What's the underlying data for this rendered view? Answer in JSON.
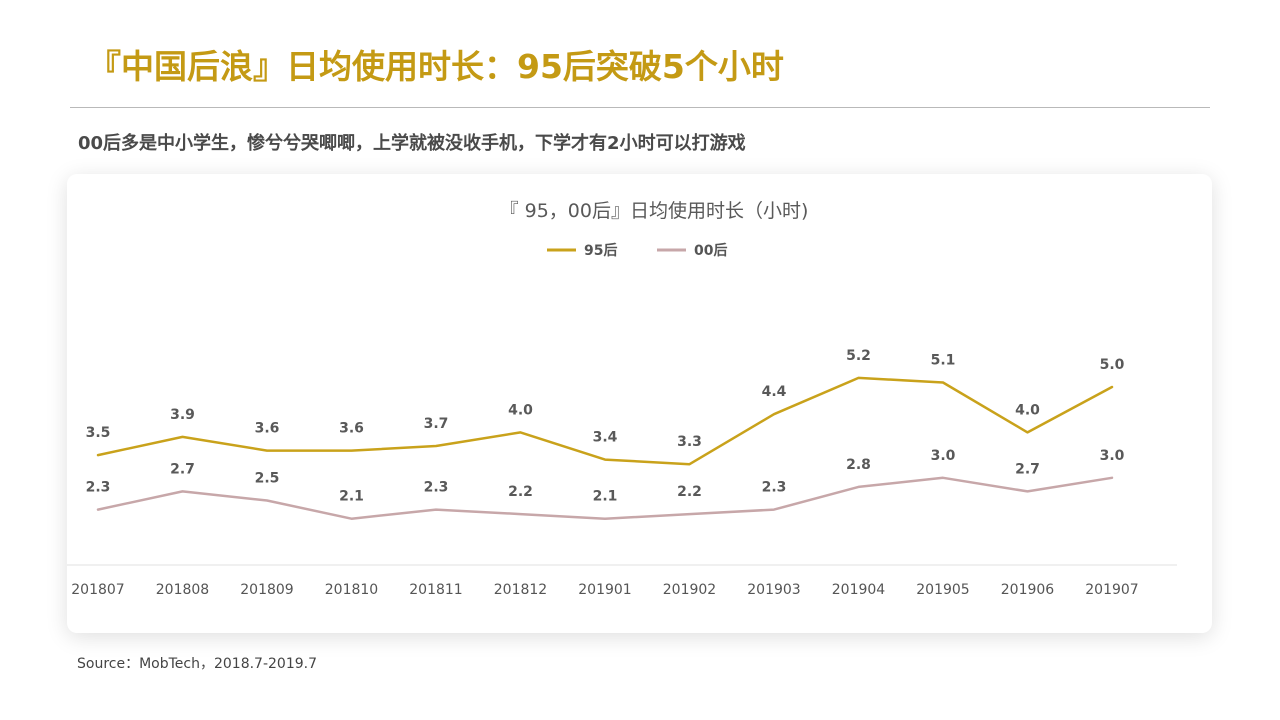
{
  "header": {
    "title": "『中国后浪』日均使用时长：95后突破5个小时",
    "subtitle": "00后多是中小学生，惨兮兮哭唧唧，上学就被没收手机，下学才有2小时可以打游戏"
  },
  "footer": {
    "source": "Source：MobTech，2018.7-2019.7"
  },
  "colors": {
    "accent": "#c49a14",
    "series_95": "#c9a21b",
    "series_00": "#c7a7a9",
    "axis_text": "#555555"
  },
  "chart_data": {
    "type": "line",
    "title": "『 95，00后』日均使用时长（小时)",
    "xlabel": "",
    "ylabel": "",
    "categories": [
      "201807",
      "201808",
      "201809",
      "201810",
      "201811",
      "201812",
      "201901",
      "201902",
      "201903",
      "201904",
      "201905",
      "201906",
      "201907"
    ],
    "ylim": [
      0,
      6
    ],
    "grid": false,
    "legend": "top-center",
    "data_labels": true,
    "series": [
      {
        "name": "95后",
        "color": "#c9a21b",
        "values": [
          3.5,
          3.9,
          3.6,
          3.6,
          3.7,
          4.0,
          3.4,
          3.3,
          4.4,
          5.2,
          5.1,
          4.0,
          5.0
        ]
      },
      {
        "name": "00后",
        "color": "#c7a7a9",
        "values": [
          2.3,
          2.7,
          2.5,
          2.1,
          2.3,
          2.2,
          2.1,
          2.2,
          2.3,
          2.8,
          3.0,
          2.7,
          3.0
        ]
      }
    ]
  }
}
